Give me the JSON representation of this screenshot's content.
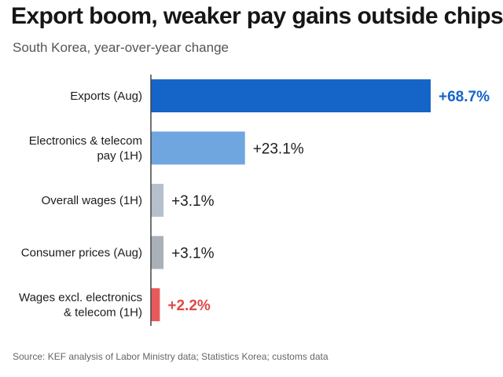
{
  "header": {
    "title": "Export boom, weaker pay gains outside chips",
    "subtitle": "South Korea, year-over-year change"
  },
  "footer": {
    "source": "Source: KEF analysis of Labor Ministry data; Statistics Korea; customs data"
  },
  "chart_data": {
    "type": "bar",
    "orientation": "horizontal",
    "title": "Export boom, weaker pay gains outside chips",
    "subtitle": "South Korea, year-over-year change",
    "unit": "%",
    "grid": false,
    "legend": "none",
    "categories": [
      "Exports (Aug)",
      "Electronics & telecom pay (1H)",
      "Overall wages (1H)",
      "Consumer prices (Aug)",
      "Wages excl. electronics & telecom (1H)"
    ],
    "category_lines": [
      [
        "Exports (Aug)"
      ],
      [
        "Electronics & telecom",
        "pay (1H)"
      ],
      [
        "Overall wages (1H)"
      ],
      [
        "Consumer prices (Aug)"
      ],
      [
        "Wages excl. electronics",
        "& telecom (1H)"
      ]
    ],
    "values": [
      68.7,
      23.1,
      3.1,
      3.1,
      2.2
    ],
    "value_labels": [
      "+68.7%",
      "+23.1%",
      "+3.1%",
      "+3.1%",
      "+2.2%"
    ],
    "xlim": [
      0,
      68.7
    ],
    "bar_colors": [
      "#1565c8",
      "#6fa6e0",
      "#b6c0cc",
      "#a9b0b8",
      "#e85a5a"
    ],
    "label_colors": [
      "#1565c8",
      "#1c1c1c",
      "#1c1c1c",
      "#1c1c1c",
      "#e04848"
    ]
  }
}
